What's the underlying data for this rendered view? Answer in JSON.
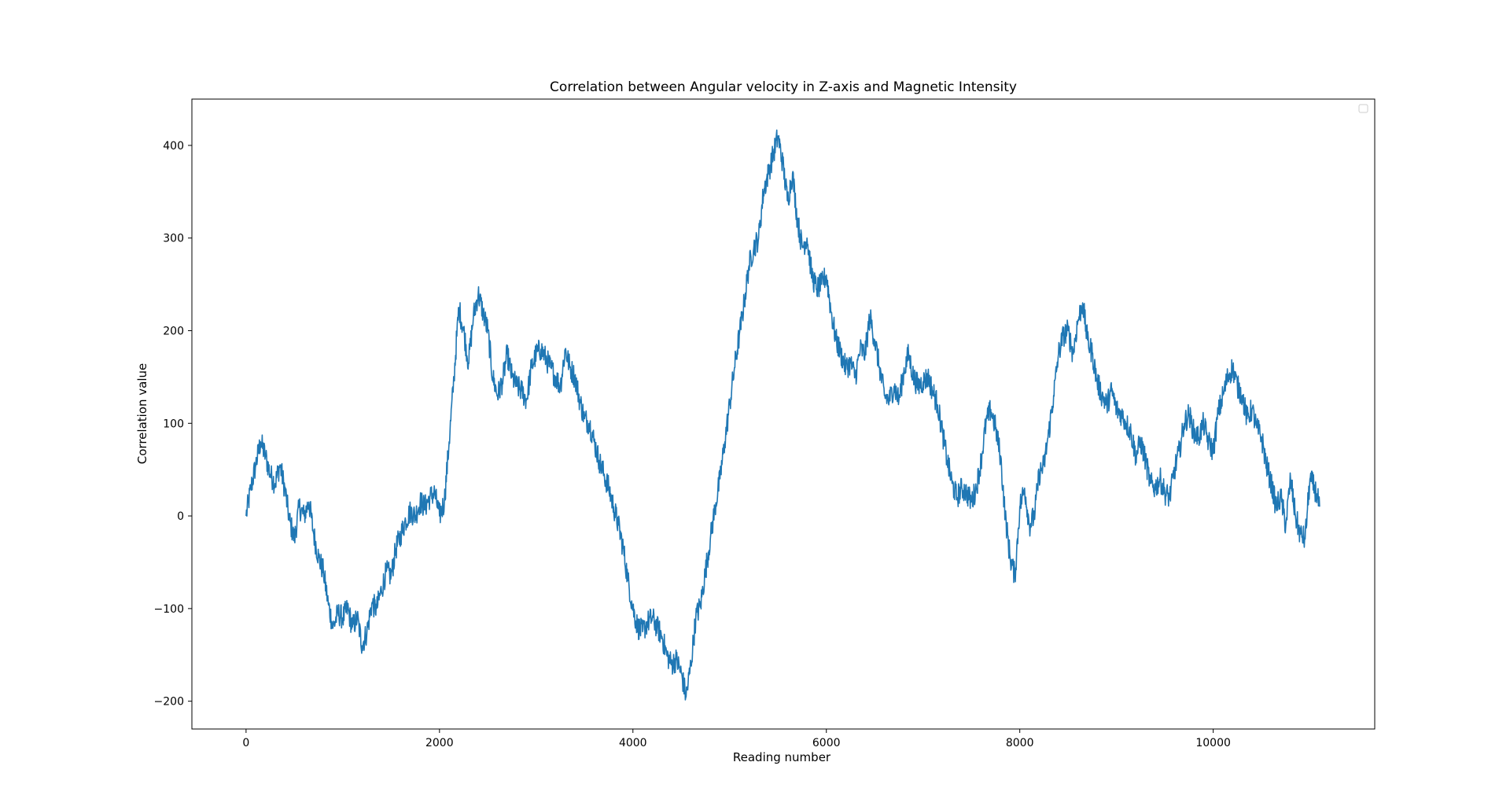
{
  "chart_data": {
    "type": "line",
    "title": "Correlation between Angular velocity in Z-axis and Magnetic Intensity",
    "xlabel": "Reading number",
    "ylabel": "Correlation value",
    "xlim": [
      -560,
      11670
    ],
    "ylim": [
      -230,
      450
    ],
    "xticks": [
      0,
      2000,
      4000,
      6000,
      8000,
      10000
    ],
    "xtick_labels": [
      "0",
      "2000",
      "4000",
      "6000",
      "8000",
      "10000"
    ],
    "yticks": [
      -200,
      -100,
      0,
      100,
      200,
      300,
      400
    ],
    "ytick_labels": [
      "−200",
      "−100",
      "0",
      "100",
      "200",
      "300",
      "400"
    ],
    "grid": false,
    "legend": {
      "placement": "top-right",
      "entries": []
    },
    "series": [
      {
        "color": "#1f77b4",
        "x": [
          0,
          50,
          100,
          150,
          200,
          250,
          300,
          350,
          400,
          450,
          500,
          550,
          600,
          650,
          700,
          750,
          800,
          850,
          900,
          950,
          1000,
          1050,
          1100,
          1150,
          1200,
          1250,
          1300,
          1350,
          1400,
          1450,
          1500,
          1550,
          1600,
          1650,
          1700,
          1750,
          1800,
          1850,
          1900,
          1950,
          2000,
          2050,
          2100,
          2150,
          2200,
          2250,
          2300,
          2350,
          2400,
          2450,
          2500,
          2550,
          2600,
          2650,
          2700,
          2750,
          2800,
          2850,
          2900,
          2950,
          3000,
          3050,
          3100,
          3150,
          3200,
          3250,
          3300,
          3350,
          3400,
          3450,
          3500,
          3550,
          3600,
          3650,
          3700,
          3750,
          3800,
          3850,
          3900,
          3950,
          4000,
          4050,
          4100,
          4150,
          4200,
          4250,
          4300,
          4350,
          4400,
          4450,
          4500,
          4550,
          4600,
          4650,
          4700,
          4750,
          4800,
          4850,
          4900,
          4950,
          5000,
          5050,
          5100,
          5150,
          5200,
          5250,
          5300,
          5350,
          5400,
          5450,
          5500,
          5550,
          5600,
          5650,
          5700,
          5750,
          5800,
          5850,
          5900,
          5950,
          6000,
          6050,
          6100,
          6150,
          6200,
          6250,
          6300,
          6350,
          6400,
          6450,
          6500,
          6550,
          6600,
          6650,
          6700,
          6750,
          6800,
          6850,
          6900,
          6950,
          7000,
          7050,
          7100,
          7150,
          7200,
          7250,
          7300,
          7350,
          7400,
          7450,
          7500,
          7550,
          7600,
          7650,
          7700,
          7750,
          7800,
          7850,
          7900,
          7950,
          8000,
          8050,
          8100,
          8150,
          8200,
          8250,
          8300,
          8350,
          8400,
          8450,
          8500,
          8550,
          8600,
          8650,
          8700,
          8750,
          8800,
          8850,
          8900,
          8950,
          9000,
          9050,
          9100,
          9150,
          9200,
          9250,
          9300,
          9350,
          9400,
          9450,
          9500,
          9550,
          9600,
          9650,
          9700,
          9750,
          9800,
          9850,
          9900,
          9950,
          10000,
          10050,
          10100,
          10150,
          10200,
          10250,
          10300,
          10350,
          10400,
          10450,
          10500,
          10550,
          10600,
          10650,
          10700,
          10750,
          10800,
          10850,
          10900,
          10950,
          11000,
          11050,
          11100
        ],
        "y": [
          0,
          30,
          55,
          80,
          65,
          45,
          35,
          55,
          30,
          -5,
          -25,
          10,
          0,
          15,
          -20,
          -45,
          -60,
          -95,
          -120,
          -105,
          -110,
          -100,
          -120,
          -110,
          -140,
          -125,
          -95,
          -100,
          -80,
          -60,
          -65,
          -35,
          -20,
          -5,
          5,
          0,
          15,
          10,
          20,
          25,
          0,
          15,
          80,
          150,
          225,
          200,
          165,
          215,
          240,
          220,
          200,
          150,
          130,
          145,
          175,
          150,
          140,
          135,
          125,
          160,
          175,
          180,
          170,
          160,
          150,
          140,
          180,
          160,
          150,
          125,
          105,
          100,
          80,
          60,
          45,
          30,
          10,
          -10,
          -35,
          -70,
          -100,
          -120,
          -125,
          -115,
          -110,
          -120,
          -130,
          -150,
          -160,
          -155,
          -170,
          -195,
          -160,
          -110,
          -95,
          -60,
          -25,
          10,
          40,
          80,
          120,
          160,
          195,
          230,
          270,
          290,
          300,
          350,
          370,
          390,
          410,
          380,
          340,
          370,
          320,
          290,
          300,
          260,
          245,
          250,
          260,
          220,
          190,
          175,
          160,
          165,
          150,
          180,
          175,
          215,
          190,
          160,
          130,
          125,
          140,
          125,
          155,
          175,
          150,
          140,
          145,
          150,
          135,
          120,
          90,
          60,
          35,
          20,
          30,
          25,
          15,
          30,
          60,
          100,
          115,
          95,
          65,
          0,
          -45,
          -65,
          10,
          30,
          -10,
          0,
          45,
          55,
          90,
          130,
          175,
          195,
          200,
          175,
          210,
          230,
          190,
          175,
          145,
          130,
          120,
          135,
          115,
          110,
          100,
          90,
          65,
          80,
          60,
          35,
          30,
          40,
          25,
          20,
          50,
          70,
          100,
          110,
          90,
          85,
          100,
          80,
          70,
          110,
          130,
          150,
          160,
          140,
          130,
          105,
          115,
          95,
          85,
          55,
          35,
          10,
          20,
          -10,
          40,
          0,
          -20,
          -25,
          40,
          30,
          10
        ]
      }
    ]
  }
}
